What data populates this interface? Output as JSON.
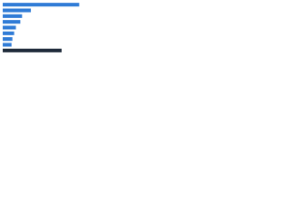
{
  "chart_data": {
    "type": "hbar",
    "categories": [
      null,
      null,
      null,
      null,
      null,
      null,
      null,
      null,
      null
    ],
    "values": [
      87,
      32,
      22,
      20,
      15,
      13,
      11,
      10,
      67
    ],
    "colors": [
      "#2f7bd6",
      "#2f7bd6",
      "#2f7bd6",
      "#2f7bd6",
      "#2f7bd6",
      "#2f7bd6",
      "#2f7bd6",
      "#2f7bd6",
      "#1e2a3a"
    ],
    "xlim": [
      0,
      100
    ]
  }
}
